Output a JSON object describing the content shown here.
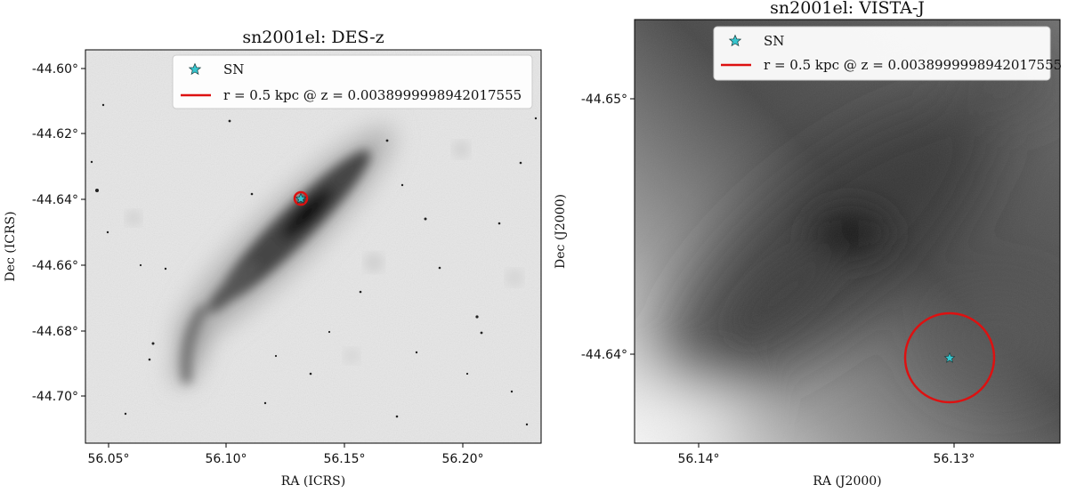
{
  "panels": [
    {
      "title": "sn2001el: DES-z",
      "xlabel": "RA (ICRS)",
      "ylabel": "Dec (ICRS)",
      "xticks": [
        "56.05°",
        "56.10°",
        "56.15°",
        "56.20°"
      ],
      "yticks": [
        "-44.60°",
        "-44.62°",
        "-44.64°",
        "-44.66°",
        "-44.68°",
        "-44.70°"
      ],
      "legend": {
        "sn_label": "SN",
        "radius_label": "r = 0.5 kpc @ z = 0.0038999998942017555"
      },
      "colors": {
        "marker": "#36c6cf",
        "circle": "#dd1111"
      }
    },
    {
      "title": "sn2001el: VISTA-J",
      "xlabel": "RA (J2000)",
      "ylabel": "Dec (J2000)",
      "xticks": [
        "56.14°",
        "56.13°"
      ],
      "yticks": [
        "-44.65°",
        "-44.64°"
      ],
      "legend": {
        "sn_label": "SN",
        "radius_label": "r = 0.5 kpc @ z = 0.0038999998942017555"
      },
      "colors": {
        "marker": "#36c6cf",
        "circle": "#dd1111"
      }
    }
  ]
}
